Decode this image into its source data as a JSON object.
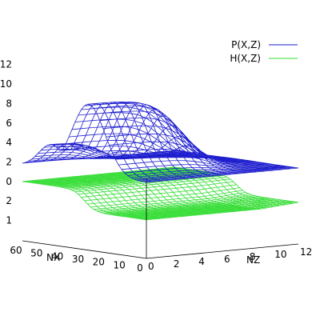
{
  "chart_data": {
    "type": "surface",
    "title": "",
    "xlabel": "NX",
    "ylabel": "NZ",
    "zlabel": "",
    "x_range": [
      0,
      60
    ],
    "y_range": [
      0,
      12
    ],
    "z_range_P": [
      0,
      12
    ],
    "z_range_H": [
      0,
      2
    ],
    "x_ticks": [
      "0",
      "10",
      "20",
      "30",
      "40",
      "50",
      "60"
    ],
    "y_ticks": [
      "0",
      "2",
      "4",
      "6",
      "8",
      "10",
      "12"
    ],
    "z_ticks_P": [
      "0",
      "2",
      "4",
      "6",
      "8",
      "10",
      "12"
    ],
    "z_ticks_H": [
      "1",
      "2"
    ],
    "legend_position": "top-right",
    "grid": false,
    "series": [
      {
        "name": "P(X,Z)",
        "color": "#1f1fcf",
        "style": "wireframe",
        "peak_value": 10.5,
        "peak_nx": 28,
        "peak_nz": 3,
        "base_value": 0
      },
      {
        "name": "H(X,Z)",
        "color": "#33dd33",
        "style": "wireframe",
        "high_value": 1.7,
        "low_value": 0.7,
        "transition_nx": 30
      }
    ]
  }
}
